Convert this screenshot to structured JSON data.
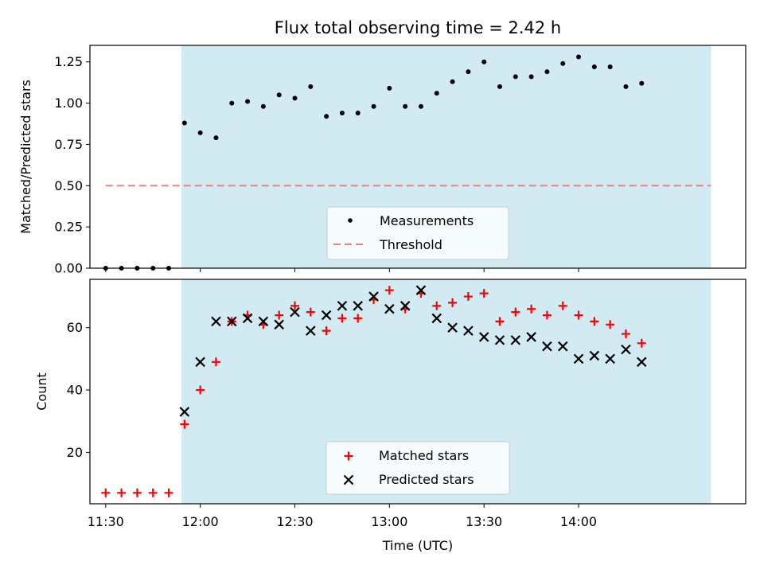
{
  "chart_data": [
    {
      "type": "scatter",
      "title": "Flux total observing time = 2.42 h",
      "xlabel": "",
      "ylabel": "Matched/Predicted stars",
      "ylim": [
        0,
        1.35
      ],
      "yticks": [
        "0.00",
        "0.25",
        "0.50",
        "0.75",
        "1.00",
        "1.25"
      ],
      "grid": false,
      "legend_placement": "lower-center",
      "shaded_interval": {
        "start": "11:54",
        "end": "14:42",
        "color": "#add8e6"
      },
      "threshold": {
        "label": "Threshold",
        "value": 0.5,
        "start": "11:30",
        "end": "14:42",
        "color": "#f08080"
      },
      "series": [
        {
          "name": "Measurements",
          "color": "#000000",
          "x": [
            "11:30",
            "11:35",
            "11:40",
            "11:45",
            "11:50",
            "11:55",
            "12:00",
            "12:05",
            "12:10",
            "12:15",
            "12:20",
            "12:25",
            "12:30",
            "12:35",
            "12:40",
            "12:45",
            "12:50",
            "12:55",
            "13:00",
            "13:05",
            "13:10",
            "13:15",
            "13:20",
            "13:25",
            "13:30",
            "13:35",
            "13:40",
            "13:45",
            "13:50",
            "13:55",
            "14:00",
            "14:05",
            "14:10",
            "14:15",
            "14:20"
          ],
          "values": [
            0,
            0,
            0,
            0,
            0,
            0.88,
            0.82,
            0.79,
            1.0,
            1.01,
            0.98,
            1.05,
            1.03,
            1.1,
            0.92,
            0.94,
            0.94,
            0.98,
            1.09,
            0.98,
            0.98,
            1.06,
            1.13,
            1.19,
            1.25,
            1.1,
            1.16,
            1.16,
            1.19,
            1.24,
            1.28,
            1.22,
            1.22,
            1.1,
            1.12
          ]
        }
      ]
    },
    {
      "type": "scatter",
      "xlabel": "Time (UTC)",
      "ylabel": "Count",
      "xlim": [
        "11:25",
        "14:53"
      ],
      "ylim": [
        3.5,
        75.5
      ],
      "yticks": [
        "20",
        "40",
        "60"
      ],
      "xticks": [
        "11:30",
        "12:00",
        "12:30",
        "13:00",
        "13:30",
        "14:00"
      ],
      "grid": false,
      "legend_placement": "lower-center",
      "shaded_interval": {
        "start": "11:54",
        "end": "14:42",
        "color": "#add8e6"
      },
      "series": [
        {
          "name": "Matched stars",
          "marker": "plus",
          "color": "#ff0000",
          "x": [
            "11:30",
            "11:35",
            "11:40",
            "11:45",
            "11:50",
            "11:55",
            "12:00",
            "12:05",
            "12:10",
            "12:15",
            "12:20",
            "12:25",
            "12:30",
            "12:35",
            "12:40",
            "12:45",
            "12:50",
            "12:55",
            "13:00",
            "13:05",
            "13:10",
            "13:15",
            "13:20",
            "13:25",
            "13:30",
            "13:35",
            "13:40",
            "13:45",
            "13:50",
            "13:55",
            "14:00",
            "14:05",
            "14:10",
            "14:15",
            "14:20"
          ],
          "values": [
            7,
            7,
            7,
            7,
            7,
            29,
            40,
            49,
            62,
            64,
            61,
            64,
            67,
            65,
            59,
            63,
            63,
            69,
            72,
            66,
            71,
            67,
            68,
            70,
            71,
            62,
            65,
            66,
            64,
            67,
            64,
            62,
            61,
            58,
            55
          ]
        },
        {
          "name": "Predicted stars",
          "marker": "x",
          "color": "#000000",
          "x": [
            "11:55",
            "12:00",
            "12:05",
            "12:10",
            "12:15",
            "12:20",
            "12:25",
            "12:30",
            "12:35",
            "12:40",
            "12:45",
            "12:50",
            "12:55",
            "13:00",
            "13:05",
            "13:10",
            "13:15",
            "13:20",
            "13:25",
            "13:30",
            "13:35",
            "13:40",
            "13:45",
            "13:50",
            "13:55",
            "14:00",
            "14:05",
            "14:10",
            "14:15",
            "14:20"
          ],
          "values": [
            33,
            49,
            62,
            62,
            63,
            62,
            61,
            65,
            59,
            64,
            67,
            67,
            70,
            66,
            67,
            72,
            63,
            60,
            59,
            57,
            56,
            56,
            57,
            54,
            54,
            50,
            51,
            50,
            53,
            49
          ]
        }
      ]
    }
  ]
}
